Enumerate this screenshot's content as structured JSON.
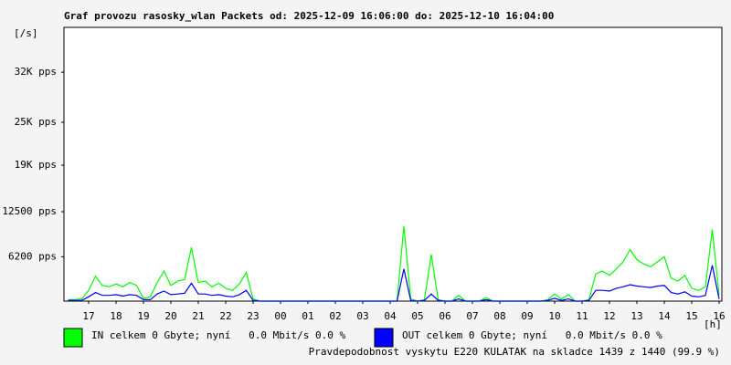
{
  "chart_data": {
    "type": "line",
    "title": "Graf provozu rasosky_wlan Packets od: 2025-12-09 16:06:00 do: 2025-12-10 16:04:00",
    "y_unit": "[/s]",
    "x_unit": "[h]",
    "xlim": [
      16.1,
      40.1
    ],
    "xticks": [
      17,
      18,
      19,
      20,
      21,
      22,
      23,
      {
        "value": 24,
        "label": "00"
      },
      {
        "value": 25,
        "label": "01"
      },
      {
        "value": 26,
        "label": "02"
      },
      {
        "value": 27,
        "label": "03"
      },
      {
        "value": 28,
        "label": "04"
      },
      {
        "value": 29,
        "label": "05"
      },
      {
        "value": 30,
        "label": "06"
      },
      {
        "value": 31,
        "label": "07"
      },
      {
        "value": 32,
        "label": "08"
      },
      {
        "value": 33,
        "label": "09"
      },
      {
        "value": 34,
        "label": "10"
      },
      {
        "value": 35,
        "label": "11"
      },
      {
        "value": 36,
        "label": "12"
      },
      {
        "value": 37,
        "label": "13"
      },
      {
        "value": 38,
        "label": "14"
      },
      {
        "value": 39,
        "label": "15"
      },
      {
        "value": 40,
        "label": "16"
      }
    ],
    "ylim": [
      0,
      38265
    ],
    "yticks": [
      {
        "value": 6200,
        "label": "6200 pps"
      },
      {
        "value": 12500,
        "label": "12500 pps"
      },
      {
        "value": 19000,
        "label": "19K pps"
      },
      {
        "value": 25000,
        "label": "25K pps"
      },
      {
        "value": 32000,
        "label": "32K pps"
      }
    ],
    "x": [
      16.25,
      16.5,
      16.75,
      17,
      17.25,
      17.5,
      17.75,
      18,
      18.25,
      18.5,
      18.75,
      19,
      19.25,
      19.5,
      19.75,
      20,
      20.25,
      20.5,
      20.75,
      21,
      21.25,
      21.5,
      21.75,
      22,
      22.25,
      22.5,
      22.75,
      23,
      23.25,
      23.5,
      23.75,
      24,
      24.25,
      24.5,
      24.75,
      25,
      25.25,
      25.5,
      25.75,
      26,
      26.25,
      26.5,
      26.75,
      27,
      27.25,
      27.5,
      27.75,
      28,
      28.25,
      28.5,
      28.75,
      29,
      29.25,
      29.5,
      29.75,
      30,
      30.25,
      30.5,
      30.75,
      31,
      31.25,
      31.5,
      31.75,
      32,
      32.25,
      32.5,
      32.75,
      33,
      33.25,
      33.5,
      33.75,
      34,
      34.25,
      34.5,
      34.75,
      35,
      35.25,
      35.5,
      35.75,
      36,
      36.25,
      36.5,
      36.75,
      37,
      37.25,
      37.5,
      37.75,
      38,
      38.25,
      38.5,
      38.75,
      39,
      39.25,
      39.5,
      39.75,
      40
    ],
    "series": [
      {
        "name": "IN celkem 0 Gbyte; nyní   0.0 Mbit/s 0.0 %",
        "color": "#00ff00",
        "values": [
          200,
          200,
          300,
          1500,
          3500,
          2200,
          2000,
          2400,
          2000,
          2600,
          2200,
          400,
          600,
          2600,
          4200,
          2200,
          2800,
          3000,
          7500,
          2600,
          2800,
          2000,
          2500,
          1800,
          1500,
          2400,
          4000,
          300,
          0,
          0,
          0,
          0,
          0,
          0,
          0,
          0,
          0,
          0,
          0,
          0,
          0,
          0,
          0,
          0,
          0,
          0,
          0,
          0,
          0,
          10500,
          300,
          0,
          200,
          6500,
          200,
          0,
          0,
          800,
          0,
          0,
          0,
          500,
          0,
          0,
          0,
          0,
          0,
          0,
          0,
          0,
          200,
          1000,
          300,
          900,
          0,
          0,
          200,
          3800,
          4200,
          3600,
          4500,
          5500,
          7200,
          5800,
          5200,
          4800,
          5500,
          6200,
          3200,
          2800,
          3600,
          1800,
          1500,
          2000,
          10000,
          800
        ]
      },
      {
        "name": "OUT celkem 0 Gbyte; nyní   0.0 Mbit/s 0.0 %",
        "color": "#0000ff",
        "values": [
          100,
          100,
          100,
          600,
          1200,
          800,
          800,
          900,
          700,
          900,
          800,
          200,
          200,
          1000,
          1400,
          900,
          1000,
          1100,
          2500,
          1000,
          1000,
          800,
          900,
          700,
          600,
          900,
          1500,
          100,
          0,
          0,
          0,
          0,
          0,
          0,
          0,
          0,
          0,
          0,
          0,
          0,
          0,
          0,
          0,
          0,
          0,
          0,
          0,
          0,
          0,
          4500,
          100,
          0,
          100,
          1000,
          100,
          0,
          0,
          300,
          0,
          0,
          0,
          200,
          0,
          0,
          0,
          0,
          0,
          0,
          0,
          0,
          100,
          400,
          100,
          300,
          0,
          0,
          100,
          1500,
          1500,
          1400,
          1800,
          2000,
          2300,
          2100,
          2000,
          1900,
          2100,
          2200,
          1200,
          1000,
          1300,
          700,
          600,
          800,
          5000,
          300
        ]
      }
    ],
    "footnote": "Pravdepodobnost vyskytu E220 KULATAK na skladce 1439 z 1440 (99.9 %)",
    "footnote_color": "#ff0000"
  }
}
